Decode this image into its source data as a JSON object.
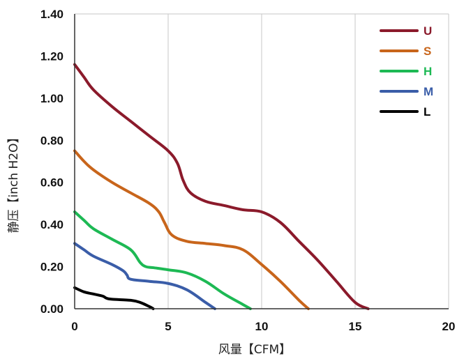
{
  "chart_data": {
    "type": "line",
    "xlabel": "风量【CFM】",
    "ylabel": "静压【inch H2O】",
    "xlim": [
      0,
      20
    ],
    "ylim": [
      0,
      1.4
    ],
    "x_ticks": [
      "0",
      "5",
      "10",
      "15",
      "20"
    ],
    "y_ticks": [
      "0.00",
      "0.20",
      "0.40",
      "0.60",
      "0.80",
      "1.00",
      "1.20",
      "1.40"
    ],
    "grid": "vertical",
    "legend_position": "top-right",
    "series": [
      {
        "name": "U",
        "color": "#8b1a2b",
        "x": [
          0,
          0.5,
          1,
          2,
          3,
          4,
          5,
          5.5,
          5.8,
          6.2,
          7,
          8,
          9,
          10,
          11,
          12,
          13,
          14,
          15,
          15.7
        ],
        "y": [
          1.16,
          1.1,
          1.04,
          0.96,
          0.89,
          0.82,
          0.75,
          0.69,
          0.61,
          0.55,
          0.51,
          0.49,
          0.47,
          0.46,
          0.41,
          0.32,
          0.23,
          0.13,
          0.03,
          0.0
        ]
      },
      {
        "name": "S",
        "color": "#c8651b",
        "x": [
          0,
          0.5,
          1,
          2,
          3,
          4,
          4.5,
          4.8,
          5.2,
          6,
          7,
          8,
          9,
          10,
          11,
          12,
          12.5
        ],
        "y": [
          0.75,
          0.7,
          0.66,
          0.6,
          0.55,
          0.5,
          0.46,
          0.41,
          0.35,
          0.32,
          0.31,
          0.3,
          0.28,
          0.21,
          0.13,
          0.04,
          0.0
        ]
      },
      {
        "name": "H",
        "color": "#1db954",
        "x": [
          0,
          0.5,
          1,
          2,
          3,
          3.5,
          3.8,
          4.2,
          5,
          6,
          7,
          8,
          9,
          9.4
        ],
        "y": [
          0.46,
          0.42,
          0.38,
          0.33,
          0.28,
          0.22,
          0.2,
          0.195,
          0.185,
          0.17,
          0.13,
          0.07,
          0.02,
          0.0
        ]
      },
      {
        "name": "M",
        "color": "#3a5da8",
        "x": [
          0,
          0.5,
          1,
          2,
          2.6,
          2.8,
          3,
          4,
          5,
          6,
          7,
          7.5
        ],
        "y": [
          0.31,
          0.28,
          0.25,
          0.21,
          0.18,
          0.16,
          0.14,
          0.13,
          0.12,
          0.09,
          0.03,
          0.0
        ]
      },
      {
        "name": "L",
        "color": "#000000",
        "x": [
          0,
          0.5,
          1,
          1.5,
          1.7,
          2,
          3,
          3.5,
          4,
          4.2
        ],
        "y": [
          0.1,
          0.08,
          0.07,
          0.06,
          0.05,
          0.045,
          0.04,
          0.03,
          0.01,
          0.0
        ]
      }
    ]
  }
}
